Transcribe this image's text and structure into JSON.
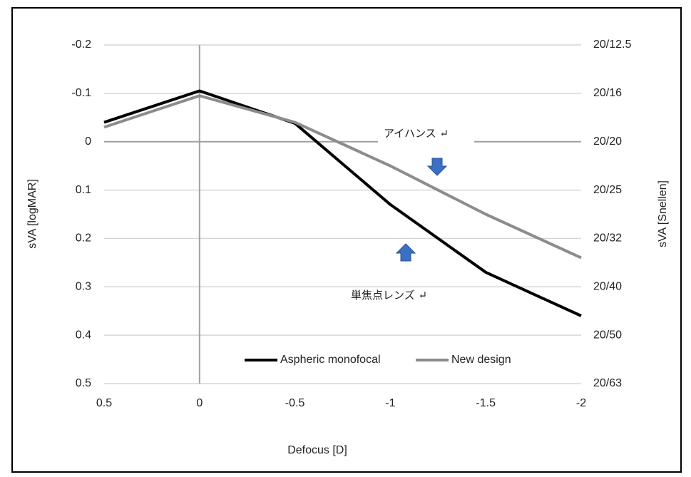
{
  "chart_data": {
    "type": "line",
    "x_label": "Defocus [D]",
    "y_label": "sVA [logMAR]",
    "y2_label": "sVA [Snellen]",
    "x": [
      0.5,
      0,
      -0.5,
      -1,
      -1.5,
      -2
    ],
    "xlim": [
      0.5,
      -2
    ],
    "xticks": [
      0.5,
      0,
      -0.5,
      -1,
      -1.5,
      -2
    ],
    "ylim": [
      0.5,
      -0.2
    ],
    "yticks": [
      -0.2,
      -0.1,
      0,
      0.1,
      0.2,
      0.3,
      0.4,
      0.5
    ],
    "y2lim": [
      0.5,
      -0.2
    ],
    "y2ticks": [
      {
        "value": -0.2,
        "label": "20/12.5"
      },
      {
        "value": -0.1,
        "label": "20/16"
      },
      {
        "value": 0,
        "label": "20/20"
      },
      {
        "value": 0.1,
        "label": "20/25"
      },
      {
        "value": 0.2,
        "label": "20/32"
      },
      {
        "value": 0.3,
        "label": "20/40"
      },
      {
        "value": 0.4,
        "label": "20/50"
      },
      {
        "value": 0.5,
        "label": "20/63"
      }
    ],
    "grid": true,
    "legend": "bottom",
    "series": [
      {
        "name": "Aspheric monofocal",
        "color": "#000000",
        "values": [
          -0.04,
          -0.105,
          -0.038,
          0.13,
          0.27,
          0.36
        ]
      },
      {
        "name": "New design",
        "color": "#8c8c8c",
        "values": [
          -0.03,
          -0.095,
          -0.04,
          0.05,
          0.15,
          0.24
        ]
      }
    ],
    "annotations": [
      "アイハンス ↵",
      "単焦点レンズ ↵"
    ]
  }
}
